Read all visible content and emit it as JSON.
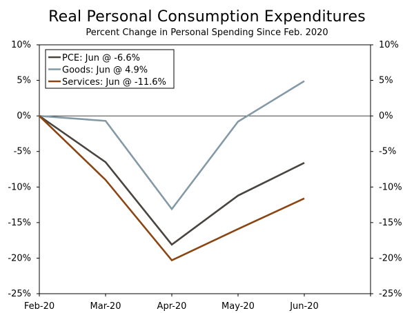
{
  "chart_data": {
    "type": "line",
    "title": "Real Personal Consumption Expenditures",
    "subtitle": "Percent Change in Personal Spending Since Feb. 2020",
    "categories": [
      "Feb-20",
      "Mar-20",
      "Apr-20",
      "May-20",
      "Jun-20"
    ],
    "ylim": [
      -25,
      10
    ],
    "ytick_labels": [
      "10%",
      "5%",
      "0%",
      "-5%",
      "-10%",
      "-15%",
      "-20%",
      "-25%"
    ],
    "yticks": [
      10,
      5,
      0,
      -5,
      -10,
      -15,
      -20,
      -25
    ],
    "series": [
      {
        "name": "PCE",
        "legend": "PCE: Jun @ -6.6%",
        "color": "#4a4440",
        "values": [
          0,
          -6.5,
          -18.1,
          -11.2,
          -6.6
        ]
      },
      {
        "name": "Goods",
        "legend": "Goods: Jun @ 4.9%",
        "color": "#8499a6",
        "values": [
          0,
          -0.7,
          -13.1,
          -0.8,
          4.9
        ]
      },
      {
        "name": "Services",
        "legend": "Services: Jun @ -11.6%",
        "color": "#8b4513",
        "values": [
          0,
          -9.0,
          -20.3,
          -15.9,
          -11.6
        ]
      }
    ],
    "legend_position": "top-left",
    "grid": false
  }
}
